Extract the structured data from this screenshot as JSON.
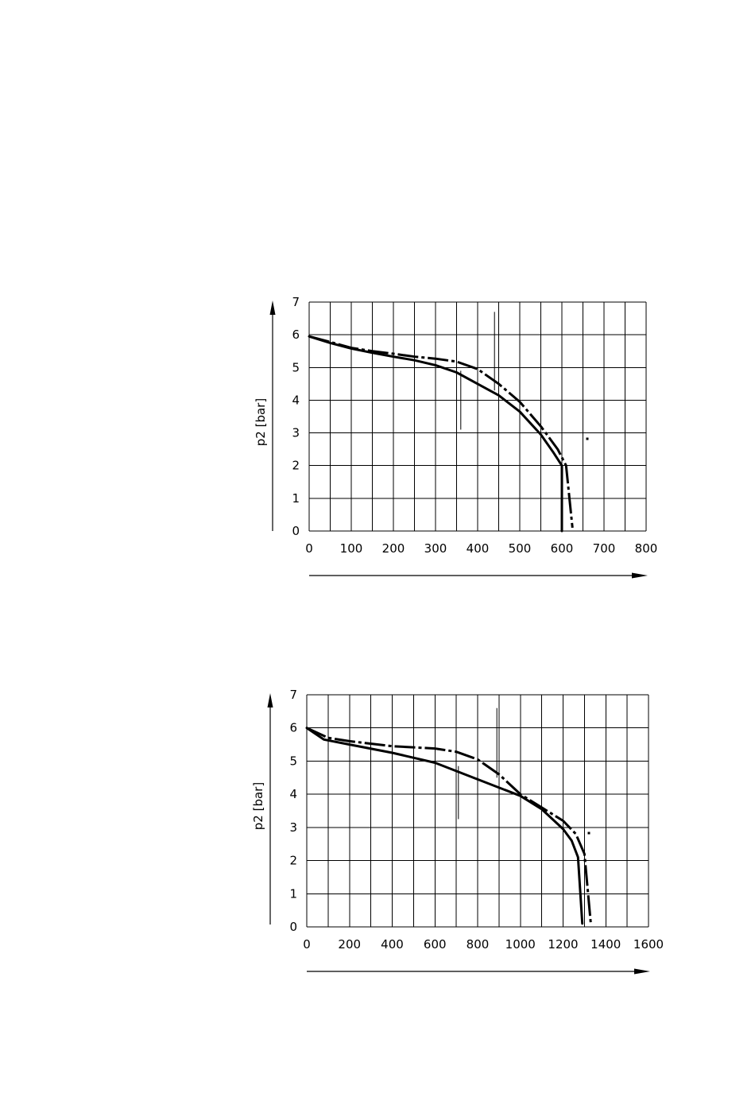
{
  "chart_data": [
    {
      "type": "line",
      "title": "",
      "xlabel": "",
      "ylabel": "p2 [bar]",
      "xlim": [
        0,
        800
      ],
      "ylim": [
        0,
        7
      ],
      "xticks": [
        0,
        100,
        200,
        300,
        400,
        500,
        600,
        700,
        800
      ],
      "yticks": [
        0,
        1,
        2,
        3,
        4,
        5,
        6,
        7
      ],
      "grid": true,
      "series": [
        {
          "style": "solid",
          "x": [
            0,
            50,
            100,
            150,
            200,
            250,
            300,
            350,
            400,
            450,
            500,
            550,
            580,
            600,
            600
          ],
          "y": [
            5.95,
            5.75,
            5.58,
            5.45,
            5.33,
            5.22,
            5.07,
            4.85,
            4.5,
            4.15,
            3.65,
            2.95,
            2.4,
            2.0,
            0
          ]
        },
        {
          "style": "dash-dot",
          "x": [
            0,
            50,
            100,
            150,
            200,
            250,
            300,
            350,
            400,
            450,
            500,
            550,
            590,
            610,
            625
          ],
          "y": [
            5.95,
            5.78,
            5.6,
            5.5,
            5.42,
            5.33,
            5.27,
            5.18,
            4.95,
            4.5,
            3.95,
            3.2,
            2.5,
            2.0,
            0.1
          ]
        }
      ],
      "markers": [
        {
          "x": 360,
          "y_from": 3.1,
          "y_to": 4.9
        },
        {
          "x": 440,
          "y_from": 4.3,
          "y_to": 6.7
        }
      ]
    },
    {
      "type": "line",
      "title": "",
      "xlabel": "",
      "ylabel": "p2 [bar]",
      "xlim": [
        0,
        1600
      ],
      "ylim": [
        0,
        7
      ],
      "xticks": [
        0,
        200,
        400,
        600,
        800,
        1000,
        1200,
        1400,
        1600
      ],
      "yticks": [
        0,
        1,
        2,
        3,
        4,
        5,
        6,
        7
      ],
      "grid": true,
      "series": [
        {
          "style": "solid",
          "x": [
            0,
            80,
            200,
            400,
            600,
            800,
            1000,
            1100,
            1200,
            1240,
            1270,
            1290
          ],
          "y": [
            6.0,
            5.65,
            5.5,
            5.25,
            4.95,
            4.45,
            3.95,
            3.55,
            2.95,
            2.6,
            2.1,
            0.1
          ]
        },
        {
          "style": "dash-dot",
          "x": [
            0,
            100,
            200,
            400,
            600,
            700,
            800,
            900,
            1000,
            1100,
            1200,
            1260,
            1300,
            1330
          ],
          "y": [
            6.0,
            5.7,
            5.6,
            5.45,
            5.38,
            5.28,
            5.05,
            4.6,
            4.0,
            3.6,
            3.2,
            2.8,
            2.2,
            0.1
          ]
        }
      ],
      "markers": [
        {
          "x": 710,
          "y_from": 3.25,
          "y_to": 4.85
        },
        {
          "x": 890,
          "y_from": 4.5,
          "y_to": 6.6
        }
      ]
    }
  ]
}
